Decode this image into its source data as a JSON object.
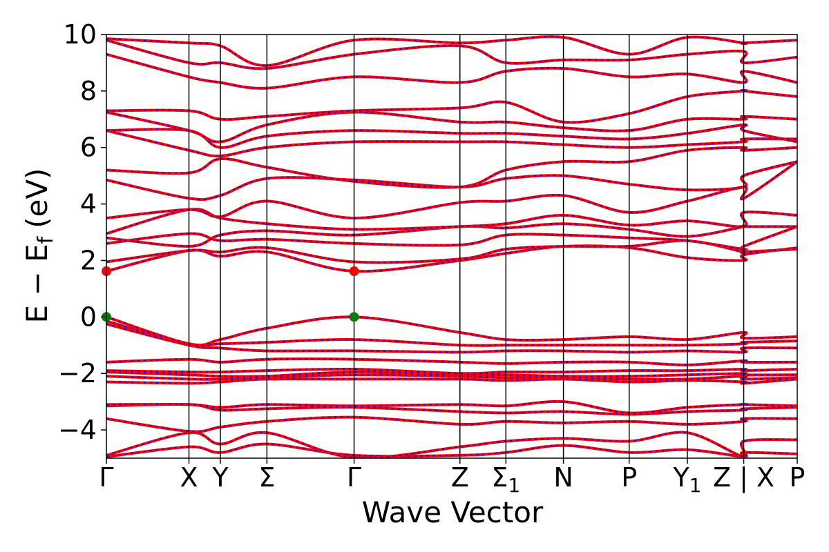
{
  "chart_data": {
    "type": "line",
    "title": "",
    "xlabel": "Wave Vector",
    "ylabel": {
      "main": "E − E",
      "sub": "f",
      "unit": "(eV)"
    },
    "ylim": [
      -5,
      10
    ],
    "yticks": [
      -4,
      -2,
      0,
      2,
      4,
      6,
      8,
      10
    ],
    "grid": false,
    "legend": "none",
    "colors": {
      "band_line": "#ff0000",
      "band_dash": "#0000ff",
      "cbm_marker": "#ff0000",
      "vbm_marker": "#008000"
    },
    "kpath_labels": [
      {
        "text": "Γ",
        "sub": "",
        "pos": 0.0
      },
      {
        "text": "X",
        "sub": "",
        "pos": 0.986
      },
      {
        "text": "Y",
        "sub": "",
        "pos": 1.361
      },
      {
        "text": "Σ",
        "sub": "",
        "pos": 1.917
      },
      {
        "text": "Γ",
        "sub": "",
        "pos": 2.958
      },
      {
        "text": "Z",
        "sub": "",
        "pos": 4.222
      },
      {
        "text": "Σ",
        "sub": "1",
        "pos": 4.771
      },
      {
        "text": "N",
        "sub": "",
        "pos": 5.458
      },
      {
        "text": "P",
        "sub": "",
        "pos": 6.243
      },
      {
        "text": "Y",
        "sub": "1",
        "pos": 6.938
      },
      {
        "text": "Z | X",
        "sub": "",
        "pos": 7.611
      },
      {
        "text": "P",
        "sub": "",
        "pos": 8.25
      }
    ],
    "band_edges": {
      "cbm": [
        {
          "x": 0.0,
          "y": 1.62
        },
        {
          "x": 2.958,
          "y": 1.62
        }
      ],
      "vbm": [
        {
          "x": 0.0,
          "y": 0.0
        },
        {
          "x": 2.958,
          "y": 0.0
        }
      ]
    },
    "bands": [
      {
        "x": [
          0.0,
          0.986,
          1.361,
          1.917,
          2.958,
          4.222,
          4.771,
          5.458,
          6.243,
          6.938,
          7.611,
          7.611,
          8.25
        ],
        "series": [
          [
            -4.95,
            -4.6,
            -4.8,
            -4.5,
            -4.9,
            -4.9,
            -4.8,
            -4.55,
            -4.8,
            -4.7,
            -4.95,
            -4.8,
            -4.85
          ],
          [
            -4.9,
            -4.1,
            -4.5,
            -4.1,
            -4.98,
            -4.6,
            -4.4,
            -4.3,
            -4.4,
            -4.1,
            -4.95,
            -4.4,
            -4.35
          ],
          [
            -3.6,
            -4.05,
            -3.9,
            -3.7,
            -3.55,
            -3.8,
            -3.7,
            -3.75,
            -3.7,
            -3.8,
            -3.7,
            -3.6,
            -3.6
          ],
          [
            -3.15,
            -3.1,
            -3.3,
            -3.25,
            -3.2,
            -3.35,
            -3.4,
            -3.35,
            -3.45,
            -3.35,
            -3.3,
            -3.25,
            -3.2
          ],
          [
            -3.1,
            -3.1,
            -3.2,
            -3.1,
            -3.15,
            -3.1,
            -3.15,
            -3.0,
            -3.4,
            -3.2,
            -3.1,
            -3.1,
            -3.15
          ],
          [
            -2.3,
            -2.35,
            -2.3,
            -2.2,
            -2.2,
            -2.2,
            -2.25,
            -2.2,
            -2.3,
            -2.25,
            -2.3,
            -2.35,
            -2.2
          ],
          [
            -2.1,
            -2.2,
            -2.2,
            -2.15,
            -2.05,
            -2.1,
            -2.15,
            -2.15,
            -2.2,
            -2.2,
            -2.1,
            -2.2,
            -2.15
          ],
          [
            -1.95,
            -2.05,
            -2.1,
            -2.1,
            -1.95,
            -2.05,
            -2.05,
            -2.1,
            -2.1,
            -2.05,
            -2.0,
            -2.05,
            -2.05
          ],
          [
            -1.9,
            -1.95,
            -1.95,
            -1.9,
            -1.85,
            -2.0,
            -1.95,
            -1.95,
            -1.9,
            -1.9,
            -1.85,
            -1.9,
            -1.85
          ],
          [
            -1.6,
            -1.5,
            -1.6,
            -1.5,
            -1.5,
            -1.6,
            -1.65,
            -1.6,
            -1.6,
            -1.7,
            -1.55,
            -1.6,
            -1.6
          ],
          [
            -0.25,
            -1.0,
            -1.1,
            -1.2,
            -1.2,
            -1.25,
            -1.2,
            -1.2,
            -1.25,
            -1.2,
            -1.25,
            -1.1,
            -1.1
          ],
          [
            -0.15,
            -0.95,
            -0.95,
            -0.9,
            -0.8,
            -1.0,
            -1.0,
            -1.0,
            -1.0,
            -1.0,
            -0.95,
            -0.9,
            -0.85
          ],
          [
            0.0,
            -0.95,
            -0.8,
            -0.4,
            0.0,
            -0.55,
            -0.8,
            -0.8,
            -0.7,
            -0.8,
            -0.55,
            -0.75,
            -0.7
          ],
          [
            1.62,
            2.35,
            2.15,
            2.3,
            1.62,
            2.0,
            2.25,
            2.5,
            2.45,
            2.1,
            2.0,
            2.2,
            2.45
          ],
          [
            1.95,
            2.35,
            2.3,
            2.45,
            1.95,
            2.05,
            2.4,
            2.5,
            2.5,
            2.7,
            2.3,
            2.3,
            2.4
          ],
          [
            2.6,
            2.95,
            2.7,
            2.75,
            2.6,
            2.55,
            2.9,
            2.9,
            2.8,
            2.7,
            2.4,
            2.5,
            3.2
          ],
          [
            2.8,
            2.5,
            2.9,
            3.05,
            2.9,
            3.2,
            3.15,
            3.3,
            3.1,
            2.85,
            3.2,
            3.2,
            3.2
          ],
          [
            2.95,
            3.8,
            3.5,
            3.3,
            3.1,
            3.2,
            3.3,
            3.6,
            3.25,
            3.4,
            3.2,
            3.7,
            3.6
          ],
          [
            3.5,
            3.8,
            3.55,
            4.1,
            3.5,
            4.05,
            4.1,
            4.3,
            3.7,
            4.1,
            4.6,
            4.2,
            5.5
          ],
          [
            4.85,
            4.2,
            4.3,
            4.9,
            4.85,
            4.6,
            4.9,
            5.0,
            4.7,
            4.5,
            4.6,
            5.0,
            5.5
          ],
          [
            5.2,
            5.1,
            5.6,
            5.3,
            4.8,
            4.6,
            5.2,
            5.5,
            5.5,
            5.9,
            6.0,
            5.9,
            6.0
          ],
          [
            6.6,
            5.9,
            5.7,
            6.0,
            6.2,
            6.2,
            6.2,
            6.1,
            6.0,
            6.1,
            6.2,
            6.3,
            6.3
          ],
          [
            6.6,
            6.6,
            6.0,
            6.4,
            6.6,
            6.5,
            6.5,
            6.4,
            6.3,
            6.5,
            6.8,
            6.6,
            6.2
          ],
          [
            7.25,
            6.6,
            6.2,
            6.8,
            7.25,
            6.9,
            6.9,
            6.7,
            6.6,
            7.0,
            7.0,
            7.1,
            7.0
          ],
          [
            7.3,
            7.3,
            7.0,
            7.1,
            7.3,
            7.4,
            7.6,
            6.9,
            7.2,
            7.8,
            8.0,
            8.0,
            7.8
          ],
          [
            9.3,
            8.5,
            8.3,
            8.1,
            8.5,
            8.3,
            8.7,
            8.8,
            8.5,
            8.6,
            8.3,
            8.7,
            8.3
          ],
          [
            9.8,
            9.0,
            9.0,
            8.8,
            9.3,
            9.6,
            9.0,
            9.1,
            9.1,
            9.3,
            9.4,
            9.0,
            9.2
          ],
          [
            9.85,
            9.7,
            9.6,
            8.9,
            9.8,
            9.7,
            9.8,
            9.9,
            9.3,
            9.9,
            9.7,
            9.7,
            9.8
          ]
        ]
      }
    ]
  }
}
